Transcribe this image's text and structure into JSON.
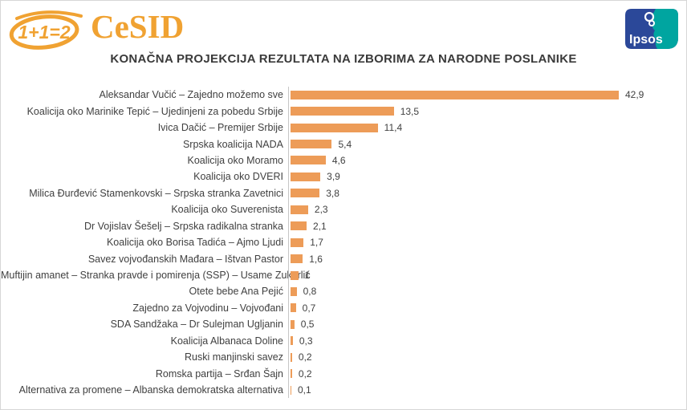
{
  "header": {
    "oneplus_logo_text": "1+1=2",
    "cesid_label": "CeSID",
    "ipsos_label": "Ipsos"
  },
  "title": "KONAČNA PROJEKCIJA REZULTATA NA IZBORIMA ZA NARODNE POSLANIKE",
  "colors": {
    "bar": "#ED9C58",
    "logo_orange": "#F0A232",
    "ipsos_navy": "#2B4899",
    "ipsos_teal": "#00A5A0",
    "axis_line": "#C6C6C6",
    "text": "#404040"
  },
  "chart_data": {
    "type": "bar",
    "orientation": "horizontal",
    "title": "KONAČNA PROJEKCIJA REZULTATA NA IZBORIMA ZA NARODNE POSLANIKE",
    "xlabel": "",
    "ylabel": "",
    "xlim": [
      0,
      45
    ],
    "grid": false,
    "legend": false,
    "bar_color": "#ED9C58",
    "categories": [
      "Aleksandar Vučić – Zajedno možemo sve",
      "Koalicija oko Marinike Tepić – Ujedinjeni za pobedu Srbije",
      "Ivica Dačić – Premijer Srbije",
      "Srpska koalicija NADA",
      "Koalicija oko Moramo",
      "Koalicija oko DVERI",
      "Milica Đurđević Stamenkovski – Srpska stranka Zavetnici",
      "Koalicija oko Suverenista",
      "Dr Vojislav Šešelj – Srpska radikalna stranka",
      "Koalicija oko Borisa Tadića – Ajmo Ljudi",
      "Savez vojvođanskih Mađara – Ištvan Pastor",
      "Muftijin amanet – Stranka pravde i pomirenja (SSP) – Usame Zukorlić",
      "Otete bebe Ana Pejić",
      "Zajedno za Vojvodinu – Vojvođani",
      "SDA Sandžaka – Dr Sulejman Ugljanin",
      "Koalicija Albanaca Doline",
      "Ruski manjinski savez",
      "Romska partija – Srđan Šajn",
      "Alternativa za promene – Albanska demokratska alternativa"
    ],
    "values": [
      42.9,
      13.5,
      11.4,
      5.4,
      4.6,
      3.9,
      3.8,
      2.3,
      2.1,
      1.7,
      1.6,
      1,
      0.8,
      0.7,
      0.5,
      0.3,
      0.2,
      0.2,
      0.1
    ],
    "value_labels": [
      "42,9",
      "13,5",
      "11,4",
      "5,4",
      "4,6",
      "3,9",
      "3,8",
      "2,3",
      "2,1",
      "1,7",
      "1,6",
      "1",
      "0,8",
      "0,7",
      "0,5",
      "0,3",
      "0,2",
      "0,2",
      "0,1"
    ]
  }
}
